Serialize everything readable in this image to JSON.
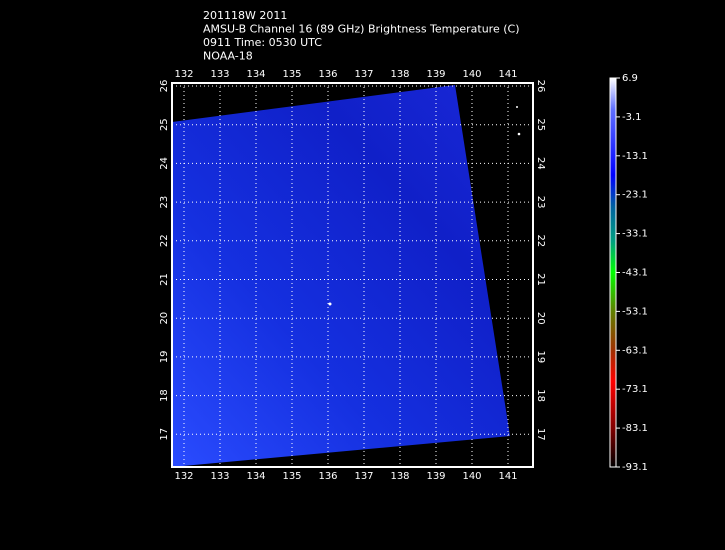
{
  "header": {
    "lines": [
      "201118W 2011",
      "AMSU-B Channel 16 (89 GHz) Brightness Temperature (C)",
      "0911 Time: 0530 UTC",
      "NOAA-18"
    ]
  },
  "map": {
    "longitudes": [
      "132",
      "133",
      "134",
      "135",
      "136",
      "137",
      "138",
      "139",
      "140",
      "141"
    ],
    "latitudes": [
      "26",
      "25",
      "24",
      "23",
      "22",
      "21",
      "20",
      "19",
      "18",
      "17"
    ]
  },
  "colorbar": {
    "labels": [
      "6.9",
      "-3.1",
      "-13.1",
      "-23.1",
      "-33.1",
      "-43.1",
      "-53.1",
      "-63.1",
      "-73.1",
      "-83.1",
      "-93.1"
    ]
  }
}
